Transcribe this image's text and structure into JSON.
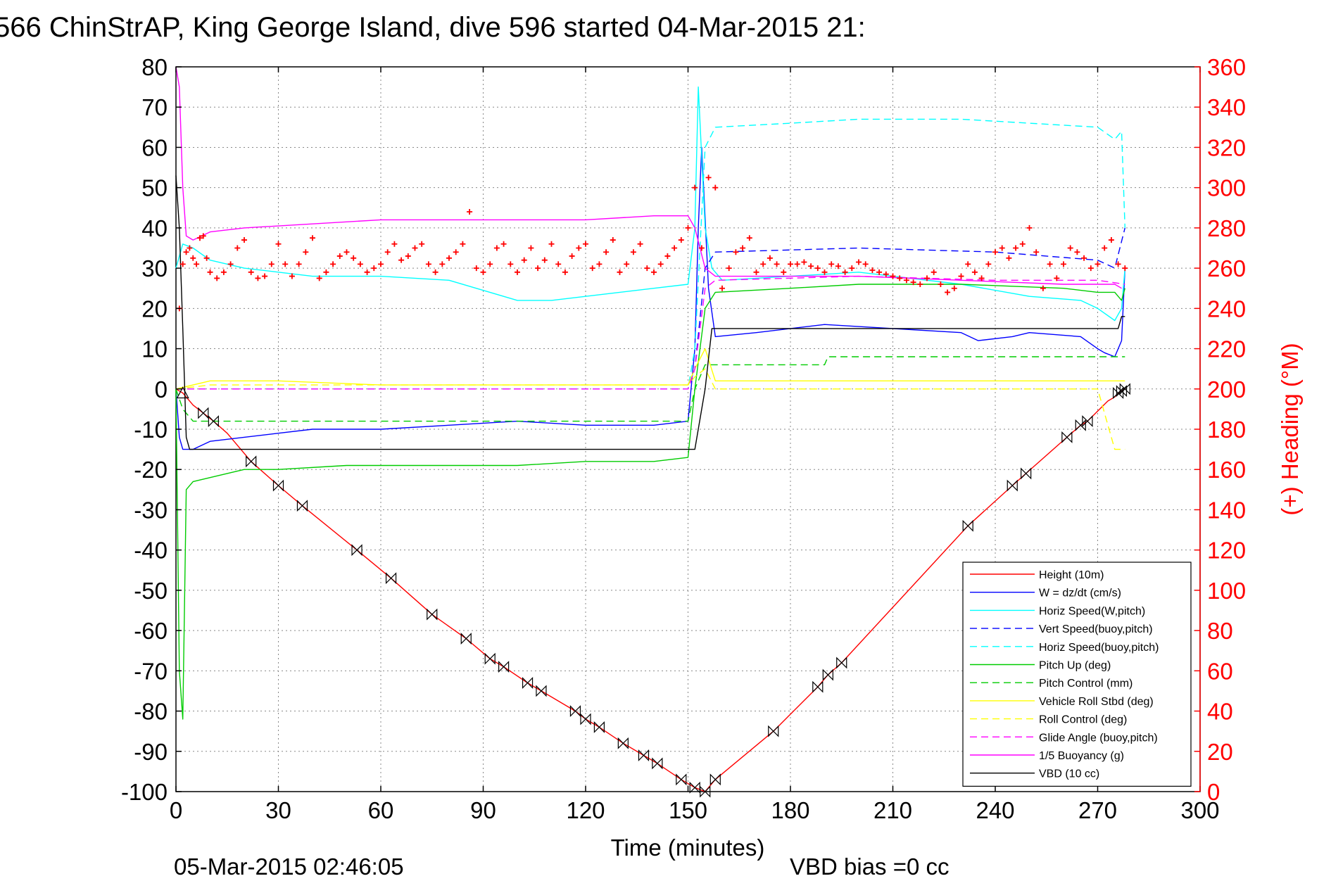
{
  "chart_data": {
    "type": "line",
    "title": "566 ChinStrAP, King George Island, dive 596 started 04-Mar-2015 21:",
    "xlabel": "Time (minutes)",
    "ylabel": "",
    "ylabel_right": "(+) Heading (°M)",
    "xlim": [
      0,
      300
    ],
    "ylim": [
      -100,
      80
    ],
    "ylim_right": [
      0,
      360
    ],
    "xticks": [
      0,
      30,
      60,
      90,
      120,
      150,
      180,
      210,
      240,
      270,
      300
    ],
    "yticks": [
      80,
      70,
      60,
      50,
      40,
      30,
      20,
      10,
      0,
      -10,
      -20,
      -30,
      -40,
      -50,
      -60,
      -70,
      -80,
      -90,
      -100
    ],
    "yticks_right": [
      360,
      340,
      320,
      300,
      280,
      260,
      240,
      220,
      200,
      180,
      160,
      140,
      120,
      100,
      80,
      60,
      40,
      20,
      0
    ],
    "grid": true,
    "legend_position": "bottom-right",
    "footer_left": "05-Mar-2015 02:46:05",
    "footer_right": "VBD bias =0 cc",
    "series": [
      {
        "name": "Height (10m)",
        "color": "#ff0000",
        "style": "solid",
        "x": [
          0,
          2,
          5,
          8,
          11,
          15,
          22,
          30,
          37,
          53,
          63,
          75,
          85,
          92,
          96,
          103,
          107,
          117,
          120,
          124,
          131,
          137,
          141,
          148,
          152,
          155,
          158,
          175,
          188,
          191,
          195,
          232,
          245,
          249,
          261,
          265,
          267,
          273,
          275,
          276,
          277,
          278
        ],
        "y": [
          0,
          -1,
          -4,
          -6,
          -8,
          -11,
          -18,
          -24,
          -29,
          -40,
          -47,
          -56,
          -62,
          -67,
          -69,
          -73,
          -75,
          -80,
          -82,
          -84,
          -88,
          -91,
          -93,
          -97,
          -99,
          -100,
          -97,
          -85,
          -74,
          -71,
          -68,
          -34,
          -24,
          -21,
          -12,
          -9,
          -8,
          -3,
          -2,
          -1,
          -0.5,
          0
        ]
      },
      {
        "name": "W = dz/dt (cm/s)",
        "color": "#0000ff",
        "style": "solid",
        "x": [
          0,
          1,
          2,
          5,
          10,
          20,
          30,
          40,
          60,
          80,
          100,
          120,
          140,
          150,
          152,
          153,
          154,
          156,
          158,
          170,
          190,
          210,
          230,
          235,
          245,
          250,
          265,
          270,
          272,
          275,
          277,
          278
        ],
        "y": [
          0,
          -12,
          -15,
          -15,
          -13,
          -12,
          -11,
          -10,
          -10,
          -9,
          -8,
          -9,
          -9,
          -8,
          10,
          40,
          60,
          25,
          13,
          14,
          16,
          15,
          14,
          12,
          13,
          14,
          13,
          10,
          9,
          8,
          12,
          30
        ]
      },
      {
        "name": "Horiz Speed(W,pitch)",
        "color": "#00ffff",
        "style": "solid",
        "x": [
          0,
          2,
          5,
          10,
          20,
          30,
          40,
          60,
          80,
          100,
          110,
          120,
          140,
          150,
          152,
          153,
          155,
          157,
          160,
          180,
          200,
          230,
          250,
          265,
          270,
          275,
          277,
          278
        ],
        "y": [
          30,
          36,
          35,
          32,
          30,
          29,
          28,
          28,
          27,
          22,
          22,
          23,
          25,
          26,
          40,
          75,
          40,
          30,
          27,
          28,
          29,
          26,
          23,
          22,
          20,
          17,
          20,
          30
        ]
      },
      {
        "name": "Vert Speed(buoy,pitch)",
        "color": "#0000ff",
        "style": "dashed",
        "x": [
          0,
          150,
          152,
          155,
          158,
          200,
          240,
          270,
          275,
          278
        ],
        "y": [
          0,
          0,
          5,
          30,
          34,
          35,
          34,
          32,
          30,
          40
        ]
      },
      {
        "name": "Horiz Speed(buoy,pitch)",
        "color": "#00ffff",
        "style": "dashed",
        "x": [
          0,
          150,
          152,
          155,
          158,
          180,
          200,
          230,
          250,
          270,
          275,
          277,
          278
        ],
        "y": [
          0,
          0,
          10,
          60,
          65,
          66,
          67,
          67,
          66,
          65,
          62,
          64,
          40
        ]
      },
      {
        "name": "Pitch Up (deg)",
        "color": "#00cc00",
        "style": "solid",
        "x": [
          0,
          1,
          2,
          3,
          5,
          10,
          20,
          30,
          50,
          80,
          100,
          120,
          140,
          150,
          152,
          155,
          158,
          180,
          200,
          230,
          260,
          270,
          275,
          277,
          278
        ],
        "y": [
          0,
          -70,
          -82,
          -25,
          -23,
          -22,
          -20,
          -20,
          -19,
          -19,
          -19,
          -18,
          -18,
          -17,
          0,
          20,
          24,
          25,
          26,
          26,
          25,
          24,
          24,
          22,
          25
        ]
      },
      {
        "name": "Pitch Control (mm)",
        "color": "#00cc00",
        "style": "dashed",
        "x": [
          0,
          2,
          5,
          150,
          152,
          155,
          158,
          190,
          191,
          270,
          278
        ],
        "y": [
          0,
          -5,
          -8,
          -8,
          0,
          6,
          6,
          6,
          8,
          8,
          8
        ]
      },
      {
        "name": "Vehicle Roll Stbd (deg)",
        "color": "#ffff00",
        "style": "solid",
        "x": [
          0,
          10,
          30,
          60,
          100,
          150,
          152,
          155,
          158,
          200,
          230,
          260,
          270,
          278
        ],
        "y": [
          0,
          2,
          2,
          1,
          1,
          1,
          5,
          10,
          2,
          2,
          2,
          2,
          2,
          2
        ]
      },
      {
        "name": "Roll Control (deg)",
        "color": "#ffff00",
        "style": "dashed",
        "x": [
          0,
          10,
          50,
          100,
          150,
          152,
          155,
          158,
          200,
          250,
          270,
          275,
          278
        ],
        "y": [
          0,
          1,
          1,
          1,
          1,
          3,
          5,
          0,
          0,
          0,
          0,
          -15,
          -15
        ]
      },
      {
        "name": "Glide Angle (buoy,pitch)",
        "color": "#ff00ff",
        "style": "dashed",
        "x": [
          0,
          150,
          152,
          155,
          158,
          200,
          240,
          270,
          278
        ],
        "y": [
          0,
          0,
          5,
          25,
          27,
          28,
          27,
          27,
          26
        ]
      },
      {
        "name": "1/5 Buoyancy (g)",
        "color": "#ff00ff",
        "style": "solid",
        "x": [
          0,
          1,
          2,
          3,
          5,
          10,
          20,
          40,
          60,
          80,
          100,
          120,
          140,
          150,
          152,
          155,
          158,
          200,
          230,
          260,
          270,
          275,
          277
        ],
        "y": [
          80,
          75,
          50,
          38,
          37,
          39,
          40,
          41,
          42,
          42,
          42,
          42,
          43,
          43,
          40,
          30,
          28,
          28,
          27,
          26,
          26,
          26,
          25
        ]
      },
      {
        "name": "VBD (10 cc)",
        "color": "#000000",
        "style": "solid",
        "x": [
          0,
          1,
          2,
          3,
          4,
          150,
          152,
          155,
          157,
          158,
          275,
          276,
          277,
          278
        ],
        "y": [
          53,
          40,
          15,
          -12,
          -15,
          -15,
          -15,
          0,
          15,
          15,
          15,
          15,
          18,
          18
        ]
      }
    ],
    "heading_series": {
      "name": "(+) Heading",
      "axis": "right",
      "color": "#ff0000",
      "marker": "+",
      "x": [
        1,
        2,
        3,
        4,
        5,
        6,
        7,
        8,
        9,
        10,
        12,
        14,
        16,
        18,
        20,
        22,
        24,
        26,
        28,
        30,
        32,
        34,
        36,
        38,
        40,
        42,
        44,
        46,
        48,
        50,
        52,
        54,
        56,
        58,
        60,
        62,
        64,
        66,
        68,
        70,
        72,
        74,
        76,
        78,
        80,
        82,
        84,
        86,
        88,
        90,
        92,
        94,
        96,
        98,
        100,
        102,
        104,
        106,
        108,
        110,
        112,
        114,
        116,
        118,
        120,
        122,
        124,
        126,
        128,
        130,
        132,
        134,
        136,
        138,
        140,
        142,
        144,
        146,
        148,
        150,
        152,
        154,
        156,
        158,
        160,
        162,
        164,
        166,
        168,
        170,
        172,
        174,
        176,
        178,
        180,
        182,
        184,
        186,
        188,
        190,
        192,
        194,
        196,
        198,
        200,
        202,
        204,
        206,
        208,
        210,
        212,
        214,
        216,
        218,
        220,
        222,
        224,
        226,
        228,
        230,
        232,
        234,
        236,
        238,
        240,
        242,
        244,
        246,
        248,
        250,
        252,
        254,
        256,
        258,
        260,
        262,
        264,
        266,
        268,
        270,
        272,
        274,
        276,
        278
      ],
      "y": [
        240,
        262,
        268,
        270,
        265,
        262,
        275,
        276,
        265,
        258,
        255,
        258,
        262,
        270,
        274,
        258,
        255,
        256,
        262,
        272,
        262,
        256,
        262,
        268,
        275,
        255,
        258,
        262,
        266,
        268,
        265,
        262,
        258,
        260,
        262,
        268,
        272,
        264,
        266,
        270,
        272,
        262,
        258,
        262,
        265,
        268,
        272,
        288,
        260,
        258,
        262,
        270,
        272,
        262,
        258,
        264,
        270,
        260,
        264,
        272,
        262,
        258,
        266,
        270,
        272,
        260,
        262,
        268,
        274,
        258,
        262,
        268,
        272,
        260,
        258,
        262,
        266,
        270,
        274,
        280,
        300,
        270,
        305,
        300,
        250,
        260,
        268,
        270,
        275,
        258,
        262,
        265,
        262,
        258,
        262,
        262,
        263,
        261,
        260,
        258,
        262,
        261,
        258,
        260,
        263,
        262,
        259,
        258,
        257,
        256,
        255,
        254,
        253,
        252,
        255,
        258,
        252,
        248,
        250,
        256,
        262,
        258,
        255,
        262,
        268,
        270,
        265,
        270,
        272,
        280,
        268,
        250,
        262,
        255,
        262,
        270,
        268,
        265,
        260,
        262,
        270,
        274,
        262,
        260
      ]
    },
    "waypoint_markers": {
      "name": "depth samples",
      "color": "#000000",
      "marker": "bowtie",
      "x": [
        8,
        11,
        22,
        30,
        37,
        53,
        63,
        75,
        85,
        92,
        96,
        103,
        107,
        117,
        120,
        124,
        131,
        137,
        141,
        148,
        152,
        155,
        158,
        175,
        188,
        191,
        195,
        232,
        245,
        249,
        261,
        265,
        267,
        276,
        277,
        278
      ],
      "y": [
        -6,
        -8,
        -18,
        -24,
        -29,
        -40,
        -47,
        -56,
        -62,
        -67,
        -69,
        -73,
        -75,
        -80,
        -82,
        -84,
        -88,
        -91,
        -93,
        -97,
        -99,
        -100,
        -97,
        -85,
        -74,
        -71,
        -68,
        -34,
        -24,
        -21,
        -12,
        -9,
        -8,
        -1,
        -0.5,
        0
      ]
    }
  }
}
